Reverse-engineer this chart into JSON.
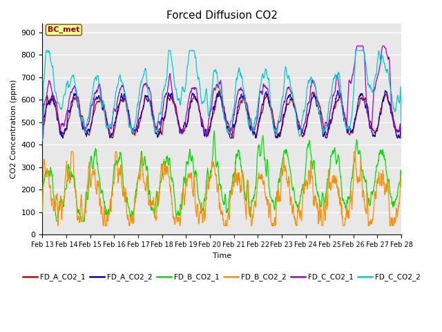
{
  "title": "Forced Diffusion CO2",
  "xlabel": "Time",
  "ylabel": "CO2 Concentration (ppm)",
  "ylim": [
    0,
    940
  ],
  "yticks": [
    0,
    100,
    200,
    300,
    400,
    500,
    600,
    700,
    800,
    900
  ],
  "x_labels": [
    "Feb 13",
    "Feb 14",
    "Feb 15",
    "Feb 16",
    "Feb 17",
    "Feb 18",
    "Feb 19",
    "Feb 20",
    "Feb 21",
    "Feb 22",
    "Feb 23",
    "Feb 24",
    "Feb 25",
    "Feb 26",
    "Feb 27",
    "Feb 28"
  ],
  "annotation_text": "BC_met",
  "annotation_color": "#8B0000",
  "annotation_bg": "#FFFF99",
  "annotation_border": "#8B6914",
  "series_colors": {
    "FD_A_CO2_1": "#CC0000",
    "FD_A_CO2_2": "#0000CC",
    "FD_B_CO2_1": "#00DD00",
    "FD_B_CO2_2": "#FF8C00",
    "FD_C_CO2_1": "#9900CC",
    "FD_C_CO2_2": "#00CCCC"
  },
  "plot_bg": "#E8E8E8",
  "grid_color": "#FFFFFF",
  "title_fontsize": 11,
  "figwidth": 6.4,
  "figheight": 4.8,
  "dpi": 100
}
